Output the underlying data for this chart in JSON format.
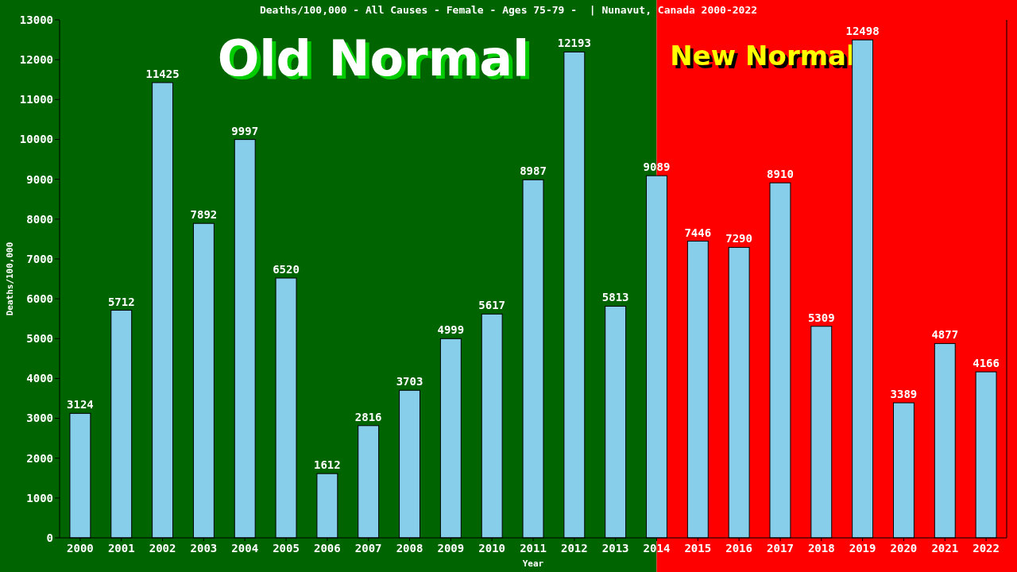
{
  "chart_data": {
    "type": "bar",
    "title": "Deaths/100,000 - All Causes - Female - Ages 75-79 -  | Nunavut, Canada 2000-2022",
    "xlabel": "Year",
    "ylabel": "Deaths/100,000",
    "categories": [
      "2000",
      "2001",
      "2002",
      "2003",
      "2004",
      "2005",
      "2006",
      "2007",
      "2008",
      "2009",
      "2010",
      "2011",
      "2012",
      "2013",
      "2014",
      "2015",
      "2016",
      "2017",
      "2018",
      "2019",
      "2020",
      "2021",
      "2022"
    ],
    "values": [
      3124,
      5712,
      11425,
      7892,
      9997,
      6520,
      1612,
      2816,
      3703,
      4999,
      5617,
      8987,
      12193,
      5813,
      9089,
      7446,
      7290,
      8910,
      5309,
      12498,
      3389,
      4877,
      4166
    ],
    "color": "#87ceeb",
    "data_labels": true,
    "grid": false,
    "legend": false,
    "ylim": [
      0,
      13000
    ],
    "yticks": [
      0,
      1000,
      2000,
      3000,
      4000,
      5000,
      6000,
      7000,
      8000,
      9000,
      10000,
      11000,
      12000,
      13000
    ],
    "bands": [
      {
        "axis": "x",
        "from": "2000",
        "to": "2014",
        "label": "Old Normal",
        "color": "#006400"
      },
      {
        "axis": "x",
        "from": "2014",
        "to": "2022",
        "label": "New Normal",
        "color": "#ff0000"
      }
    ]
  }
}
